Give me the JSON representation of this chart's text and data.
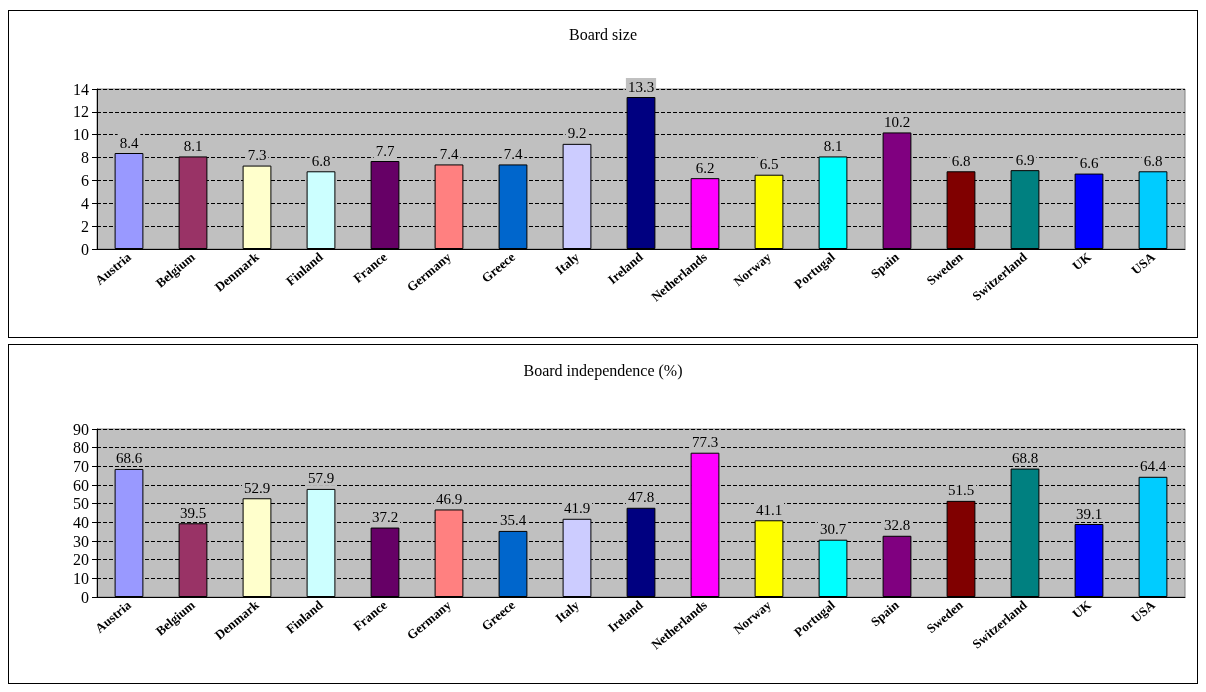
{
  "chart_data": [
    {
      "type": "bar",
      "title": "Board size",
      "categories": [
        "Austria",
        "Belgium",
        "Denmark",
        "Finland",
        "France",
        "Germany",
        "Greece",
        "Italy",
        "Ireland",
        "Netherlands",
        "Norway",
        "Portugal",
        "Spain",
        "Sweden",
        "Switzerland",
        "UK",
        "USA"
      ],
      "values": [
        8.4,
        8.1,
        7.3,
        6.8,
        7.7,
        7.4,
        7.4,
        9.2,
        13.3,
        6.2,
        6.5,
        8.1,
        10.2,
        6.8,
        6.9,
        6.6,
        6.8
      ],
      "colors": [
        "#9999ff",
        "#993366",
        "#ffffcc",
        "#ccffff",
        "#660066",
        "#ff8080",
        "#0066cc",
        "#ccccff",
        "#000080",
        "#ff00ff",
        "#ffff00",
        "#00ffff",
        "#800080",
        "#800000",
        "#008080",
        "#0000ff",
        "#00ccff"
      ],
      "ylim": [
        0,
        14
      ],
      "yticks": [
        0,
        2,
        4,
        6,
        8,
        10,
        12,
        14
      ],
      "grid": "y",
      "data_labels": true
    },
    {
      "type": "bar",
      "title": "Board independence (%)",
      "categories": [
        "Austria",
        "Belgium",
        "Denmark",
        "Finland",
        "France",
        "Germany",
        "Greece",
        "Italy",
        "Ireland",
        "Netherlands",
        "Norway",
        "Portugal",
        "Spain",
        "Sweden",
        "Switzerland",
        "UK",
        "USA"
      ],
      "values": [
        68.6,
        39.5,
        52.9,
        57.9,
        37.2,
        46.9,
        35.4,
        41.9,
        47.8,
        77.3,
        41.1,
        30.7,
        32.8,
        51.5,
        68.8,
        39.1,
        64.4
      ],
      "colors": [
        "#9999ff",
        "#993366",
        "#ffffcc",
        "#ccffff",
        "#660066",
        "#ff8080",
        "#0066cc",
        "#ccccff",
        "#000080",
        "#ff00ff",
        "#ffff00",
        "#00ffff",
        "#800080",
        "#800000",
        "#008080",
        "#0000ff",
        "#00ccff"
      ],
      "ylim": [
        0,
        90
      ],
      "yticks": [
        0,
        10,
        20,
        30,
        40,
        50,
        60,
        70,
        80,
        90
      ],
      "grid": "y",
      "data_labels": true
    }
  ]
}
